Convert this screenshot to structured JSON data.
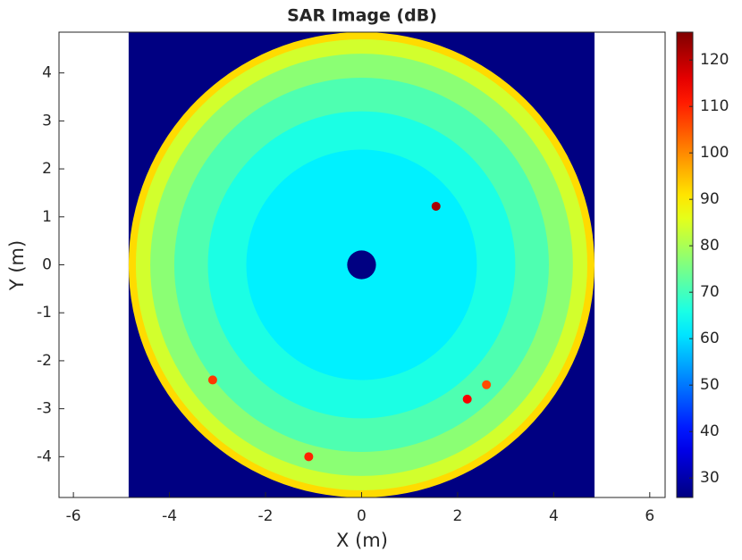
{
  "chart_data": {
    "type": "heatmap",
    "title": "SAR Image (dB)",
    "x_label": "X (m)",
    "y_label": "Y (m)",
    "xlim": [
      -6.3,
      6.32
    ],
    "ylim": [
      -4.85,
      4.85
    ],
    "xticks": [
      -6,
      -4,
      -2,
      0,
      2,
      4,
      6
    ],
    "yticks": [
      -4,
      -3,
      -2,
      -1,
      0,
      1,
      2,
      3,
      4
    ],
    "image_extent": [
      -4.85,
      4.85,
      -4.85,
      4.85
    ],
    "background_value": 26,
    "colormap": "jet",
    "clim": [
      25.8,
      126
    ],
    "colorbar_ticks": [
      30,
      40,
      50,
      60,
      70,
      80,
      90,
      100,
      110,
      120
    ],
    "rings": [
      {
        "r": 4.85,
        "value": 92
      },
      {
        "r": 4.7,
        "value": 84
      },
      {
        "r": 4.4,
        "value": 77
      },
      {
        "r": 3.9,
        "value": 71
      },
      {
        "r": 3.2,
        "value": 66
      },
      {
        "r": 2.4,
        "value": 62
      },
      {
        "r": 0.3,
        "value": 26
      }
    ],
    "spots": [
      {
        "x": 1.55,
        "y": 1.22,
        "value": 122
      },
      {
        "x": 2.2,
        "y": -2.8,
        "value": 114
      },
      {
        "x": -3.1,
        "y": -2.4,
        "value": 108
      },
      {
        "x": -1.1,
        "y": -4.0,
        "value": 110
      },
      {
        "x": 2.6,
        "y": -2.5,
        "value": 106
      }
    ]
  }
}
